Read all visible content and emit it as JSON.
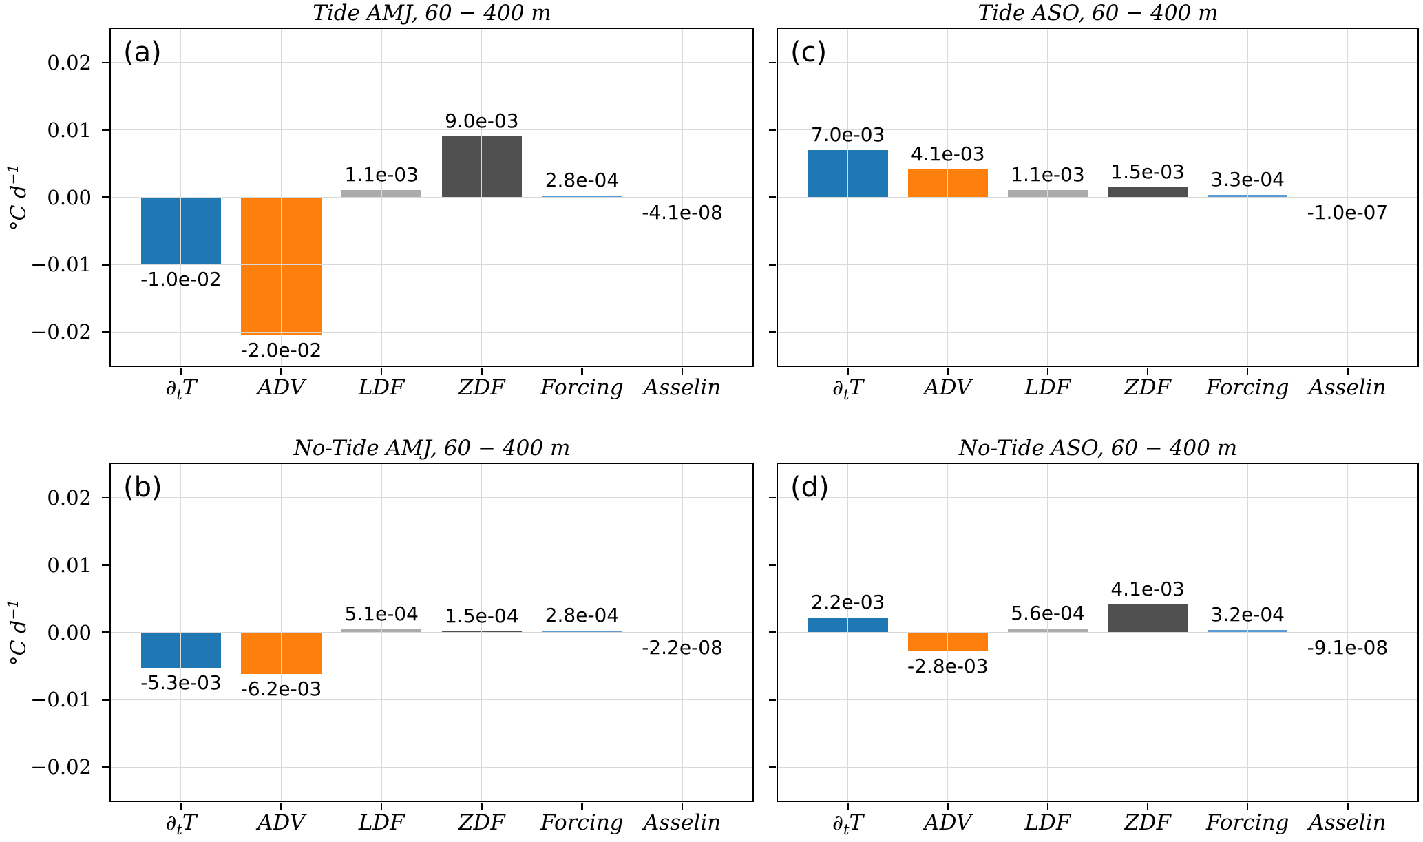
{
  "style": {
    "bar_colors": [
      "#1f77b4",
      "#ff7f0e",
      "#ababab",
      "#505050",
      "#5b9bd5",
      "#1f77b4"
    ],
    "grid_color": "#d9d9d9",
    "spine_color": "#000000",
    "background": "#ffffff"
  },
  "axis": {
    "ylabel": {
      "pre": "°C d",
      "sup": "−1"
    },
    "ylim": [
      -0.025,
      0.025
    ],
    "yticks": [
      0.02,
      0.01,
      0.0,
      -0.01,
      -0.02
    ],
    "ytick_labels": [
      "0.02",
      "0.01",
      "0.00",
      "−0.01",
      "−0.02"
    ],
    "categories": [
      {
        "label": "∂tT",
        "pre": "∂",
        "sub": "t",
        "post": "T"
      },
      {
        "label": "ADV"
      },
      {
        "label": "LDF"
      },
      {
        "label": "ZDF"
      },
      {
        "label": "Forcing"
      },
      {
        "label": "Asselin"
      }
    ]
  },
  "chart_data": [
    {
      "type": "bar",
      "panel_letter": "(a)",
      "title": "Tide AMJ, 60 − 400 m",
      "categories": [
        "∂tT",
        "ADV",
        "LDF",
        "ZDF",
        "Forcing",
        "Asselin"
      ],
      "values": [
        -0.01,
        -0.0205,
        0.0011,
        0.009,
        0.00028,
        -4.1e-08
      ],
      "value_labels": [
        "-1.0e-02",
        "-2.0e-02",
        "1.1e-03",
        "9.0e-03",
        "2.8e-04",
        "-4.1e-08"
      ],
      "ylabel": "°C d−1",
      "ylim": [
        -0.025,
        0.025
      ],
      "grid": true,
      "show_ytick_labels": true
    },
    {
      "type": "bar",
      "panel_letter": "(c)",
      "title": "Tide ASO, 60 − 400 m",
      "categories": [
        "∂tT",
        "ADV",
        "LDF",
        "ZDF",
        "Forcing",
        "Asselin"
      ],
      "values": [
        0.007,
        0.0041,
        0.0011,
        0.0015,
        0.00033,
        -1e-07
      ],
      "value_labels": [
        "7.0e-03",
        "4.1e-03",
        "1.1e-03",
        "1.5e-03",
        "3.3e-04",
        "-1.0e-07"
      ],
      "ylabel": "°C d−1",
      "ylim": [
        -0.025,
        0.025
      ],
      "grid": true,
      "show_ytick_labels": false
    },
    {
      "type": "bar",
      "panel_letter": "(b)",
      "title": "No-Tide AMJ, 60 − 400 m",
      "categories": [
        "∂tT",
        "ADV",
        "LDF",
        "ZDF",
        "Forcing",
        "Asselin"
      ],
      "values": [
        -0.0053,
        -0.0062,
        0.00051,
        0.00015,
        0.00028,
        -2.2e-08
      ],
      "value_labels": [
        "-5.3e-03",
        "-6.2e-03",
        "5.1e-04",
        "1.5e-04",
        "2.8e-04",
        "-2.2e-08"
      ],
      "ylabel": "°C d−1",
      "ylim": [
        -0.025,
        0.025
      ],
      "grid": true,
      "show_ytick_labels": true
    },
    {
      "type": "bar",
      "panel_letter": "(d)",
      "title": "No-Tide ASO, 60 − 400 m",
      "categories": [
        "∂tT",
        "ADV",
        "LDF",
        "ZDF",
        "Forcing",
        "Asselin"
      ],
      "values": [
        0.0022,
        -0.0028,
        0.00056,
        0.0041,
        0.00032,
        -9.1e-08
      ],
      "value_labels": [
        "2.2e-03",
        "-2.8e-03",
        "5.6e-04",
        "4.1e-03",
        "3.2e-04",
        "-9.1e-08"
      ],
      "ylabel": "°C d−1",
      "ylim": [
        -0.025,
        0.025
      ],
      "grid": true,
      "show_ytick_labels": false
    }
  ]
}
